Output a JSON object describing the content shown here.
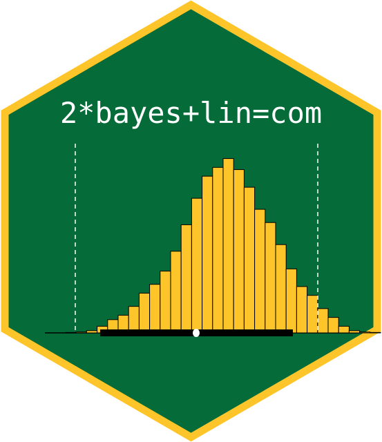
{
  "logo": {
    "title": "2*bayes+lin=com",
    "colors": {
      "background": "#056b38",
      "border": "#fdc52a",
      "bars": "#fdc52a",
      "bar_outline": "#000000",
      "interval": "#000000",
      "point": "#ffffff",
      "ref_lines": "#ffffff"
    }
  },
  "chart_data": {
    "type": "bar",
    "description_role": "histogram",
    "values": [
      0.2,
      0.4,
      1,
      3,
      6,
      8,
      12,
      18,
      22,
      28,
      37,
      49,
      61,
      71,
      75,
      79,
      74,
      66,
      56,
      50,
      40,
      29,
      21,
      17,
      11,
      7,
      3,
      1,
      0.4,
      0.2
    ],
    "ylim": [
      0,
      82
    ],
    "interval": {
      "low": 0.2,
      "high": 0.8
    },
    "point_estimate": 0.5,
    "reference_lines": [
      0.1,
      0.9
    ],
    "grid": false,
    "axes_visible": false
  }
}
